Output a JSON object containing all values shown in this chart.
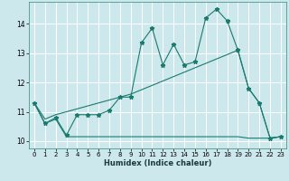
{
  "xlabel": "Humidex (Indice chaleur)",
  "background_color": "#cce8ec",
  "grid_color": "#ffffff",
  "line_color": "#1a7a6e",
  "xlim": [
    -0.5,
    23.5
  ],
  "ylim": [
    9.75,
    14.75
  ],
  "x_ticks": [
    0,
    1,
    2,
    3,
    4,
    5,
    6,
    7,
    8,
    9,
    10,
    11,
    12,
    13,
    14,
    15,
    16,
    17,
    18,
    19,
    20,
    21,
    22,
    23
  ],
  "y_ticks": [
    10,
    11,
    12,
    13,
    14
  ],
  "series1_y": [
    11.3,
    10.6,
    10.8,
    10.2,
    10.9,
    10.9,
    10.9,
    11.05,
    11.5,
    11.5,
    13.35,
    13.85,
    12.6,
    13.3,
    12.6,
    12.7,
    14.2,
    14.5,
    14.1,
    13.1,
    11.8,
    11.3,
    10.1,
    10.15
  ],
  "series2_y": [
    11.3,
    10.6,
    10.75,
    10.15,
    10.15,
    10.15,
    10.15,
    10.15,
    10.15,
    10.15,
    10.15,
    10.15,
    10.15,
    10.15,
    10.15,
    10.15,
    10.15,
    10.15,
    10.15,
    10.15,
    10.1,
    10.1,
    10.1,
    10.15
  ],
  "series3_y": [
    11.3,
    10.75,
    10.9,
    11.0,
    11.1,
    11.2,
    11.3,
    11.4,
    11.5,
    11.6,
    11.75,
    11.9,
    12.05,
    12.2,
    12.35,
    12.5,
    12.65,
    12.8,
    12.95,
    13.1,
    11.8,
    11.3,
    10.1,
    10.15
  ]
}
